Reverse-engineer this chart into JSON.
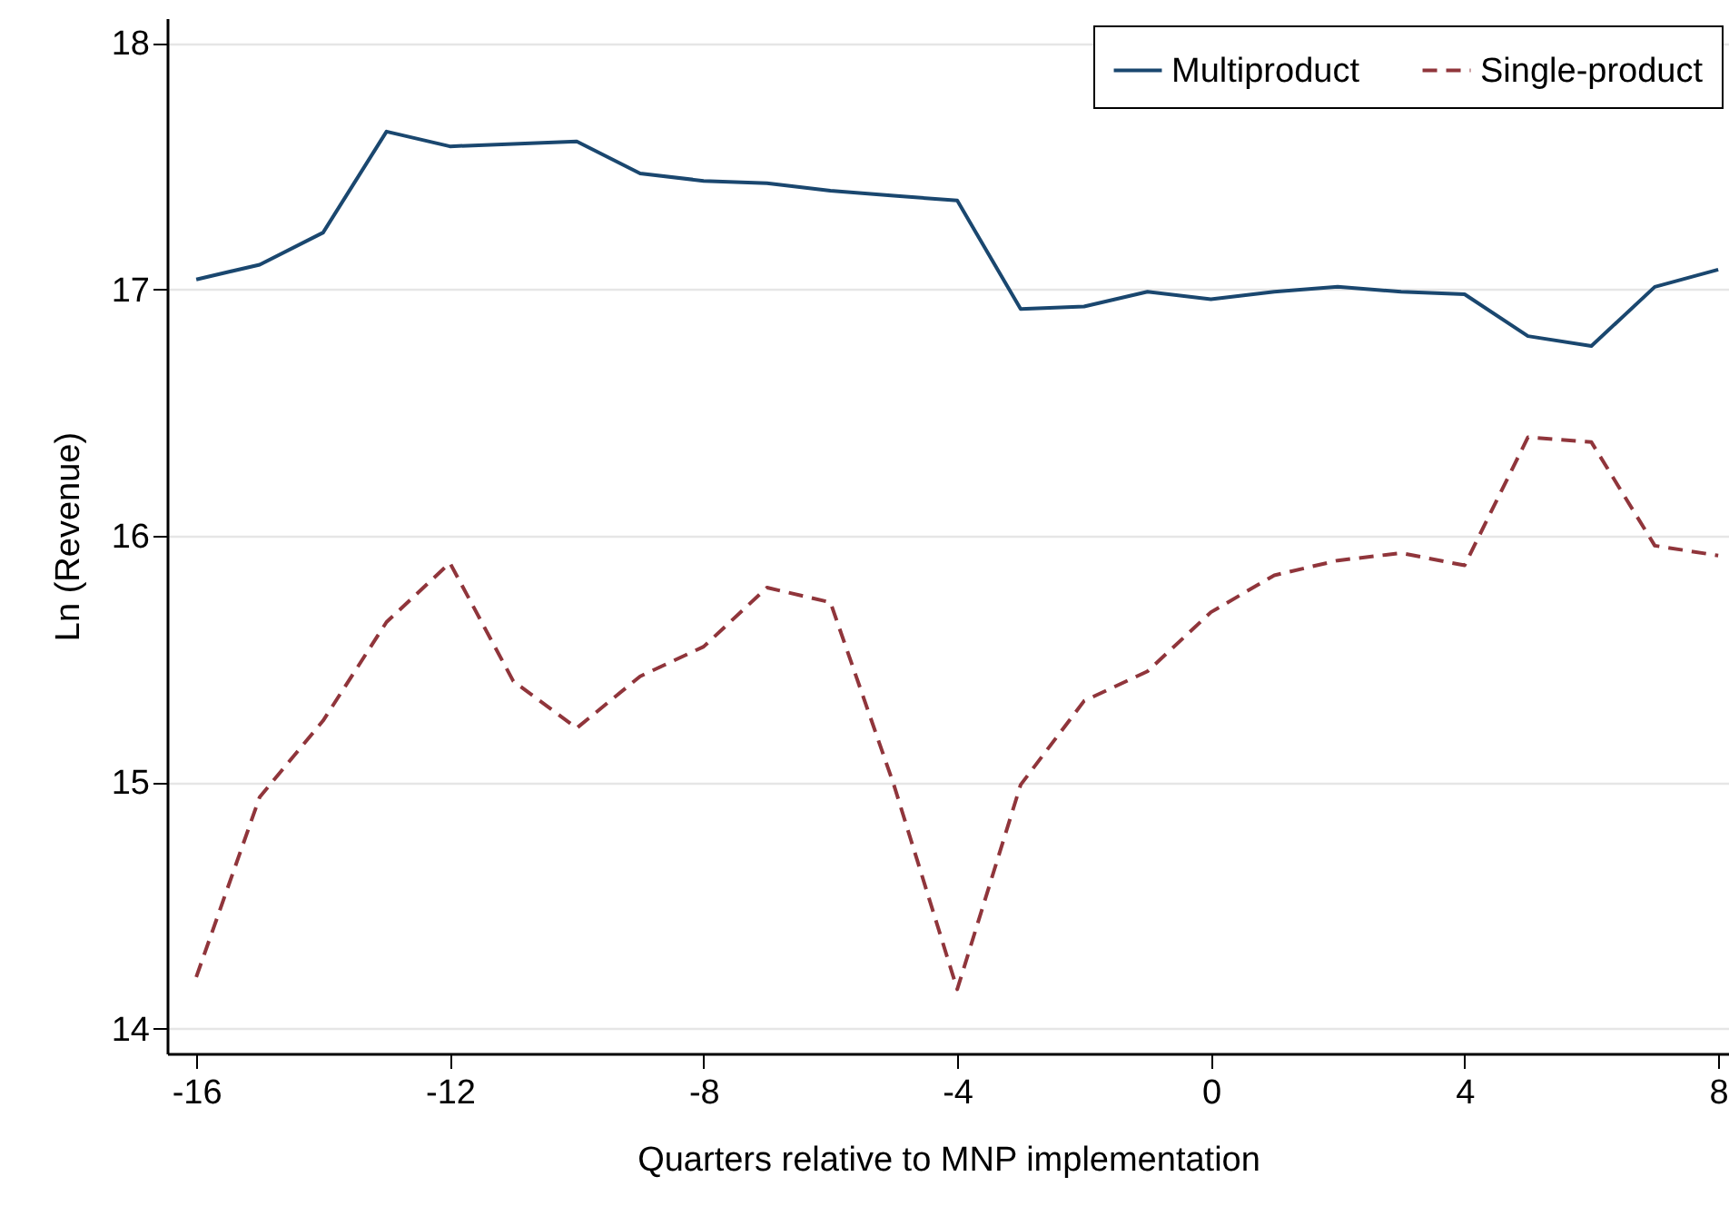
{
  "chart_data": {
    "type": "line",
    "xlabel": "Quarters relative to MNP implementation",
    "ylabel": "Ln (Revenue)",
    "x": [
      -16,
      -15,
      -14,
      -13,
      -12,
      -11,
      -10,
      -9,
      -8,
      -7,
      -6,
      -5,
      -4,
      -3,
      -2,
      -1,
      0,
      1,
      2,
      3,
      4,
      5,
      6,
      7,
      8
    ],
    "series": [
      {
        "name": "Multiproduct",
        "color": "#1a476f",
        "line_style": "solid",
        "values": [
          17.04,
          17.1,
          17.23,
          17.64,
          17.58,
          17.59,
          17.6,
          17.47,
          17.44,
          17.43,
          17.4,
          17.38,
          17.36,
          16.92,
          16.93,
          16.99,
          16.96,
          16.99,
          17.01,
          16.99,
          16.98,
          16.81,
          16.77,
          17.01,
          17.08
        ]
      },
      {
        "name": "Single-product",
        "color": "#90353b",
        "line_style": "dashed",
        "values": [
          14.21,
          14.94,
          15.25,
          15.65,
          15.89,
          15.41,
          15.22,
          15.43,
          15.55,
          15.79,
          15.73,
          14.99,
          14.16,
          14.99,
          15.33,
          15.45,
          15.69,
          15.84,
          15.9,
          15.93,
          15.88,
          16.4,
          16.38,
          15.96,
          15.92
        ]
      }
    ],
    "xlim": [
      -16.46,
      8.17
    ],
    "ylim": [
      13.9,
      18.1
    ],
    "xticks": [
      -16,
      -12,
      -8,
      -4,
      0,
      4,
      8
    ],
    "yticks": [
      14,
      15,
      16,
      17,
      18
    ],
    "grid": "y",
    "legend": "top right",
    "marker": "none"
  }
}
